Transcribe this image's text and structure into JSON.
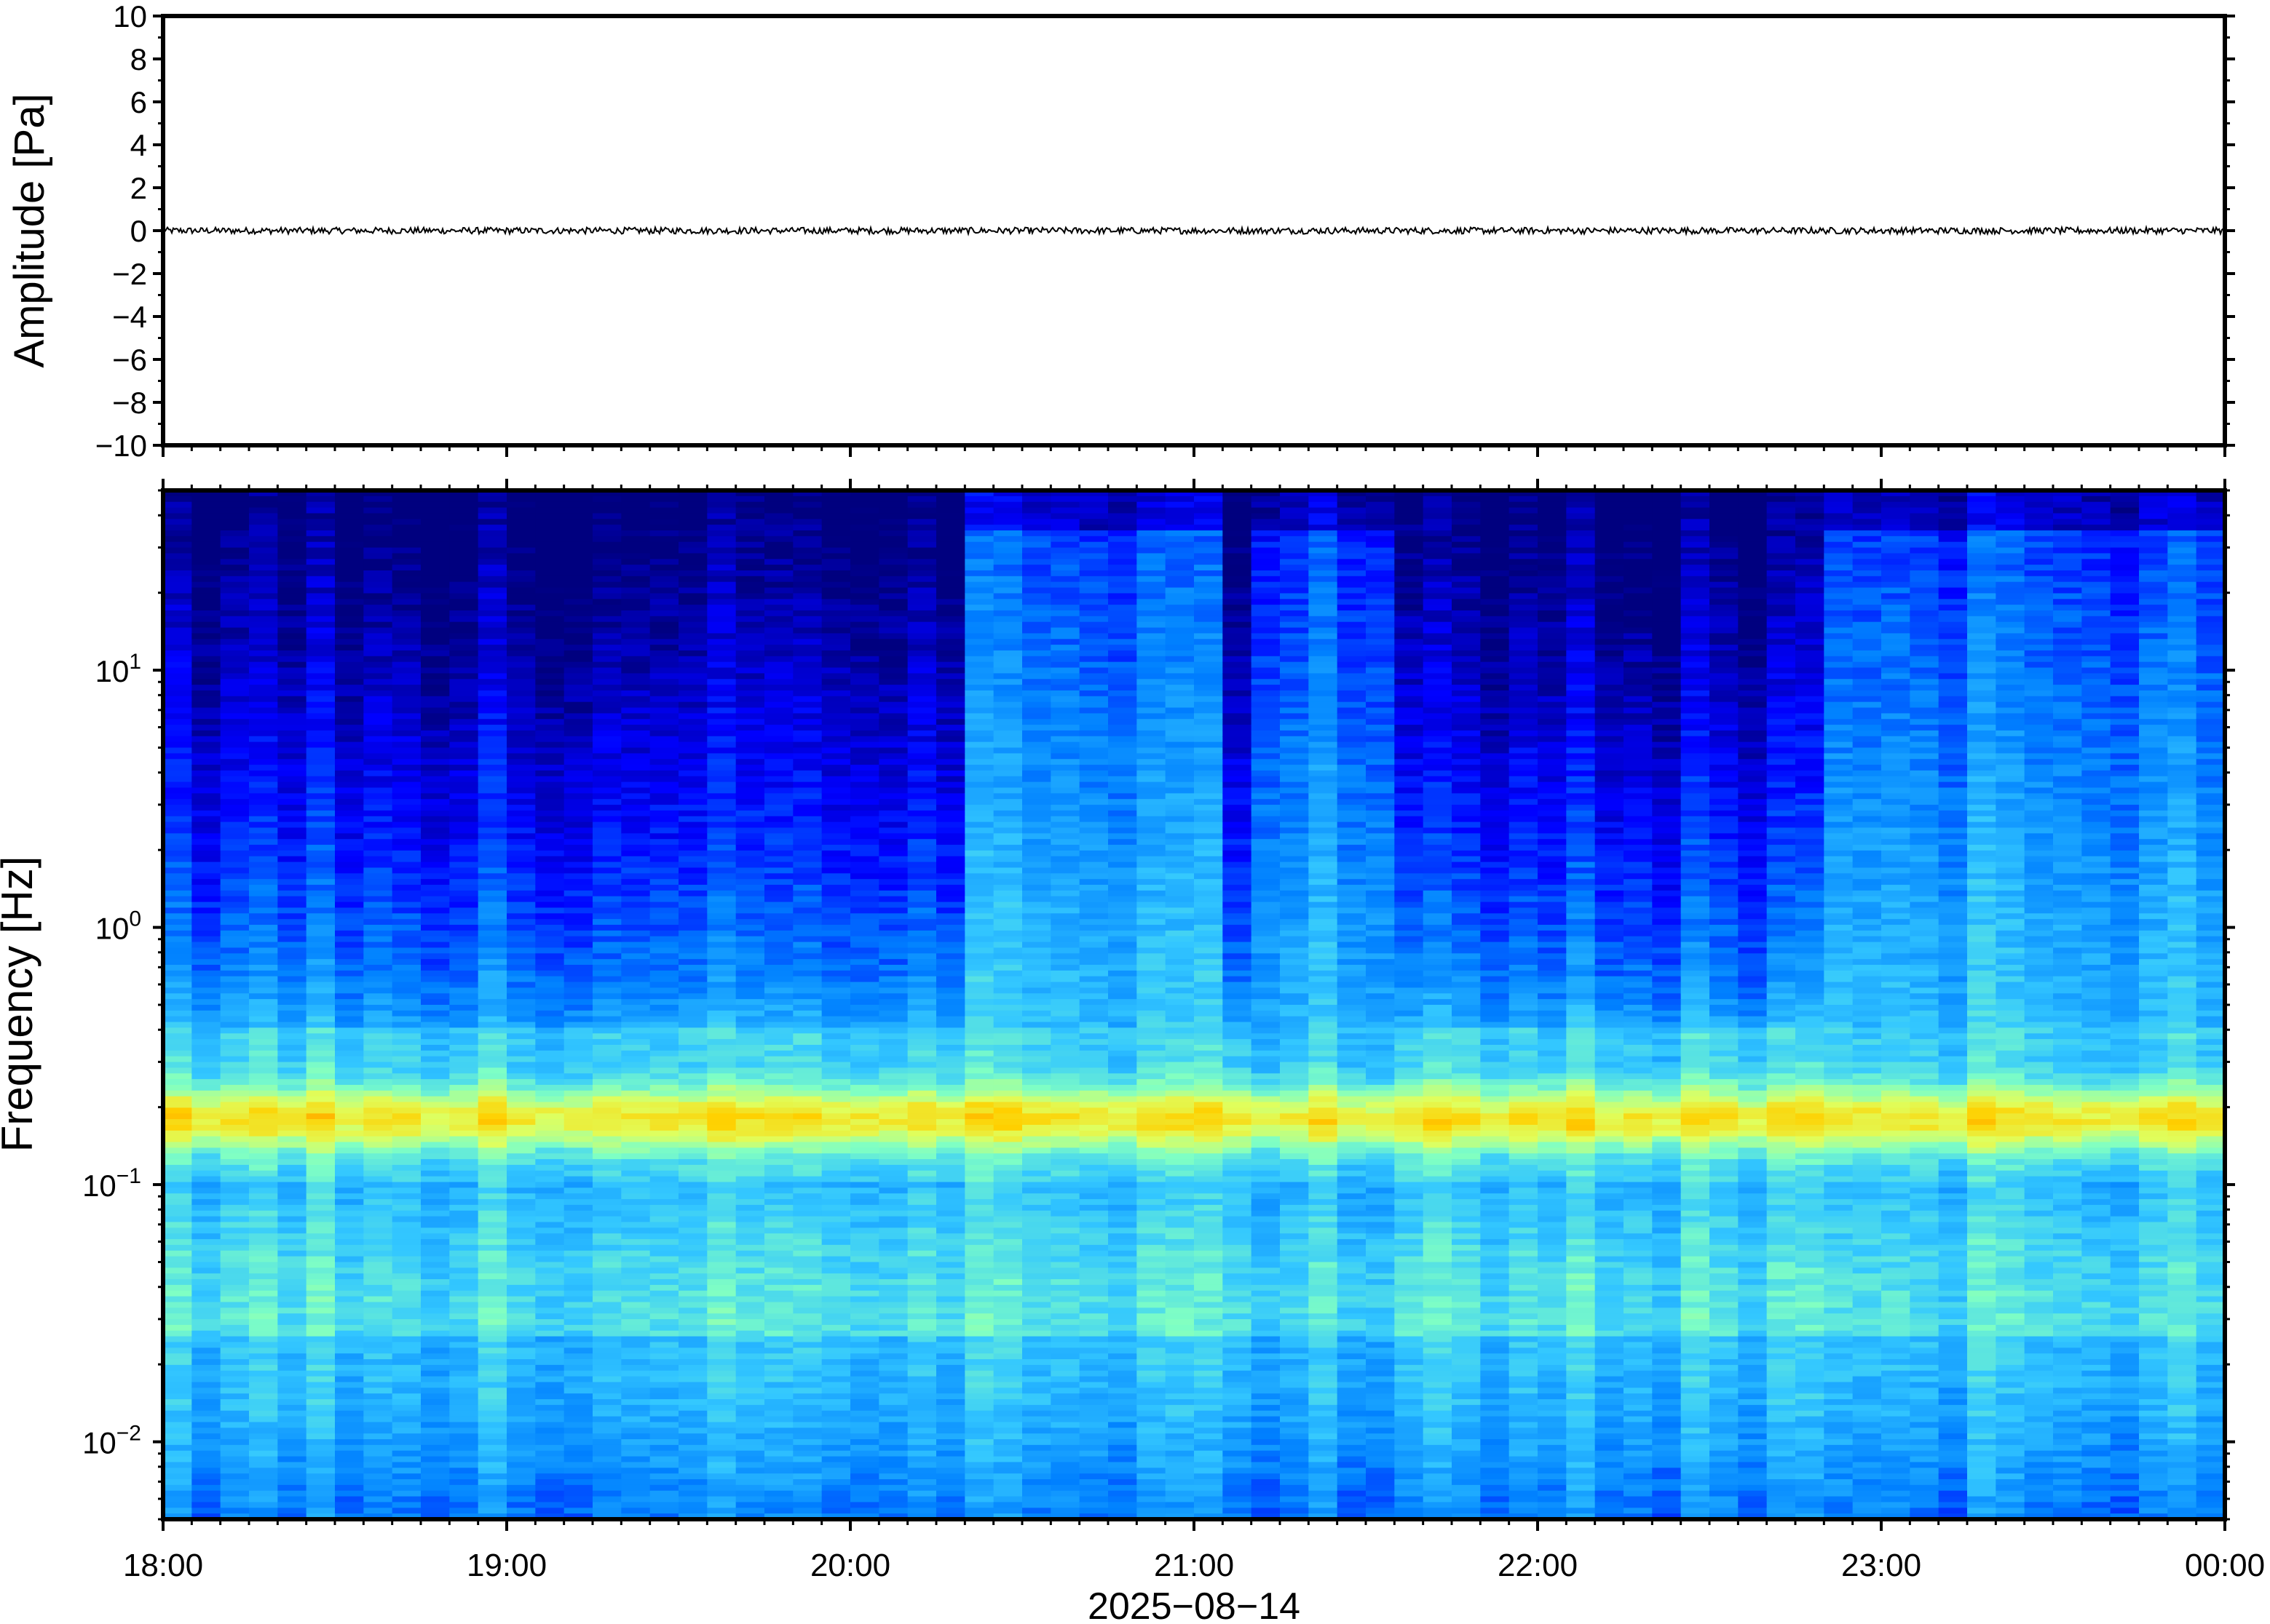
{
  "chart_data": [
    {
      "type": "line",
      "ylabel": "Amplitude [Pa]",
      "ylim": [
        -10,
        10
      ],
      "yticks": [
        10,
        8,
        6,
        4,
        2,
        0,
        -2,
        -4,
        -6,
        -8,
        -10
      ],
      "ytick_labels": [
        "10",
        "8",
        "6",
        "4",
        "2",
        "0",
        "−2",
        "−4",
        "−6",
        "−8",
        "−10"
      ],
      "series": [
        {
          "values_description_free": true,
          "x": [
            "18:00",
            "00:00"
          ],
          "y": [
            0,
            0
          ],
          "noise_amplitude": 0.15
        }
      ],
      "color": "#000000"
    },
    {
      "type": "heatmap",
      "ylabel": "Frequency [Hz]",
      "yscale": "log",
      "ylim": [
        0.005,
        50
      ],
      "yticks": [
        0.01,
        0.1,
        1,
        10
      ],
      "ytick_labels": [
        {
          "base": "10",
          "exp": "−2"
        },
        {
          "base": "10",
          "exp": "−1"
        },
        {
          "base": "10",
          "exp": "0"
        },
        {
          "base": "10",
          "exp": "1"
        }
      ],
      "x_tick_labels": [
        "18:00",
        "19:00",
        "20:00",
        "21:00",
        "22:00",
        "23:00",
        "00:00"
      ],
      "xlabel": "2025−08−14",
      "colormap": [
        "#00007f",
        "#0000ff",
        "#0080ff",
        "#33c7ff",
        "#7fffc4",
        "#dfff5e",
        "#ffd000",
        "#ff5a00"
      ],
      "active_intervals_hours": [
        [
          20.33,
          21.12
        ],
        [
          21.2,
          21.55
        ],
        [
          22.85,
          24.0
        ]
      ],
      "band_peak_hz": 0.18
    }
  ]
}
